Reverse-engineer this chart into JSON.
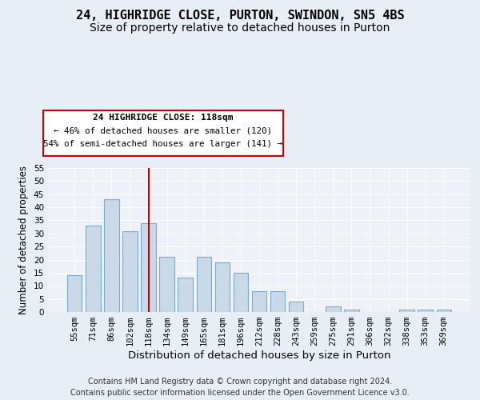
{
  "title1": "24, HIGHRIDGE CLOSE, PURTON, SWINDON, SN5 4BS",
  "title2": "Size of property relative to detached houses in Purton",
  "xlabel": "Distribution of detached houses by size in Purton",
  "ylabel": "Number of detached properties",
  "categories": [
    "55sqm",
    "71sqm",
    "86sqm",
    "102sqm",
    "118sqm",
    "134sqm",
    "149sqm",
    "165sqm",
    "181sqm",
    "196sqm",
    "212sqm",
    "228sqm",
    "243sqm",
    "259sqm",
    "275sqm",
    "291sqm",
    "306sqm",
    "322sqm",
    "338sqm",
    "353sqm",
    "369sqm"
  ],
  "values": [
    14,
    33,
    43,
    31,
    34,
    21,
    13,
    21,
    19,
    15,
    8,
    8,
    4,
    0,
    2,
    1,
    0,
    0,
    1,
    1,
    1
  ],
  "bar_color": "#c9d9e8",
  "bar_edge_color": "#7daac8",
  "highlight_index": 4,
  "highlight_color": "#cc0000",
  "ylim": [
    0,
    55
  ],
  "yticks": [
    0,
    5,
    10,
    15,
    20,
    25,
    30,
    35,
    40,
    45,
    50,
    55
  ],
  "annotation_title": "24 HIGHRIDGE CLOSE: 118sqm",
  "annotation_line1": "← 46% of detached houses are smaller (120)",
  "annotation_line2": "54% of semi-detached houses are larger (141) →",
  "annotation_box_color": "#cc0000",
  "footer1": "Contains HM Land Registry data © Crown copyright and database right 2024.",
  "footer2": "Contains public sector information licensed under the Open Government Licence v3.0.",
  "bg_color": "#e8eef5",
  "plot_bg_color": "#eef2f8",
  "grid_color": "#ffffff",
  "title1_fontsize": 11,
  "title2_fontsize": 10,
  "xlabel_fontsize": 9.5,
  "ylabel_fontsize": 8.5,
  "tick_fontsize": 7.5,
  "footer_fontsize": 7
}
